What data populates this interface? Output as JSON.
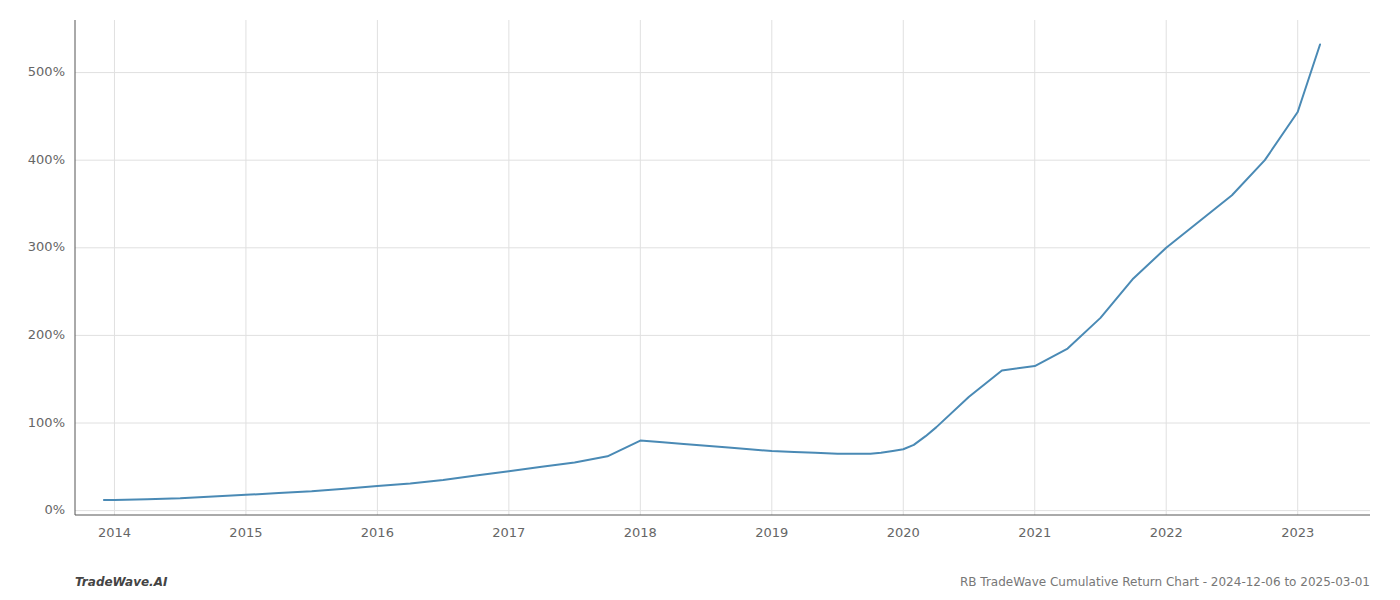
{
  "chart_data": {
    "type": "line",
    "x": [
      2013.92,
      2014.0,
      2014.25,
      2014.5,
      2014.75,
      2015.0,
      2015.25,
      2015.5,
      2015.75,
      2016.0,
      2016.25,
      2016.5,
      2016.75,
      2017.0,
      2017.25,
      2017.5,
      2017.75,
      2018.0,
      2018.17,
      2018.33,
      2018.5,
      2018.67,
      2018.83,
      2019.0,
      2019.17,
      2019.33,
      2019.5,
      2019.67,
      2019.75,
      2019.83,
      2019.92,
      2020.0,
      2020.08,
      2020.17,
      2020.25,
      2020.5,
      2020.75,
      2021.0,
      2021.25,
      2021.5,
      2021.75,
      2022.0,
      2022.25,
      2022.5,
      2022.75,
      2023.0,
      2023.17
    ],
    "values": [
      12,
      12,
      13,
      14,
      16,
      18,
      20,
      22,
      25,
      28,
      31,
      35,
      40,
      45,
      50,
      55,
      62,
      80,
      78,
      76,
      74,
      72,
      70,
      68,
      67,
      66,
      65,
      65,
      65,
      66,
      68,
      70,
      75,
      85,
      95,
      130,
      160,
      165,
      185,
      220,
      265,
      300,
      330,
      360,
      400,
      455,
      532
    ],
    "color": "#4a8ab5",
    "xlim": [
      2013.7,
      2023.55
    ],
    "xticks": [
      2014,
      2015,
      2016,
      2017,
      2018,
      2019,
      2020,
      2021,
      2022,
      2023
    ],
    "ylim": [
      -5,
      560
    ],
    "yticks": [
      {
        "value": 0,
        "label": "0%"
      },
      {
        "value": 100,
        "label": "100%"
      },
      {
        "value": 200,
        "label": "200%"
      },
      {
        "value": 300,
        "label": "300%"
      },
      {
        "value": 400,
        "label": "400%"
      },
      {
        "value": 500,
        "label": "500%"
      }
    ],
    "grid": true,
    "annotations": [
      "TradeWave.AI",
      "RB TradeWave Cumulative Return Chart - 2024-12-06 to 2025-03-01"
    ]
  }
}
